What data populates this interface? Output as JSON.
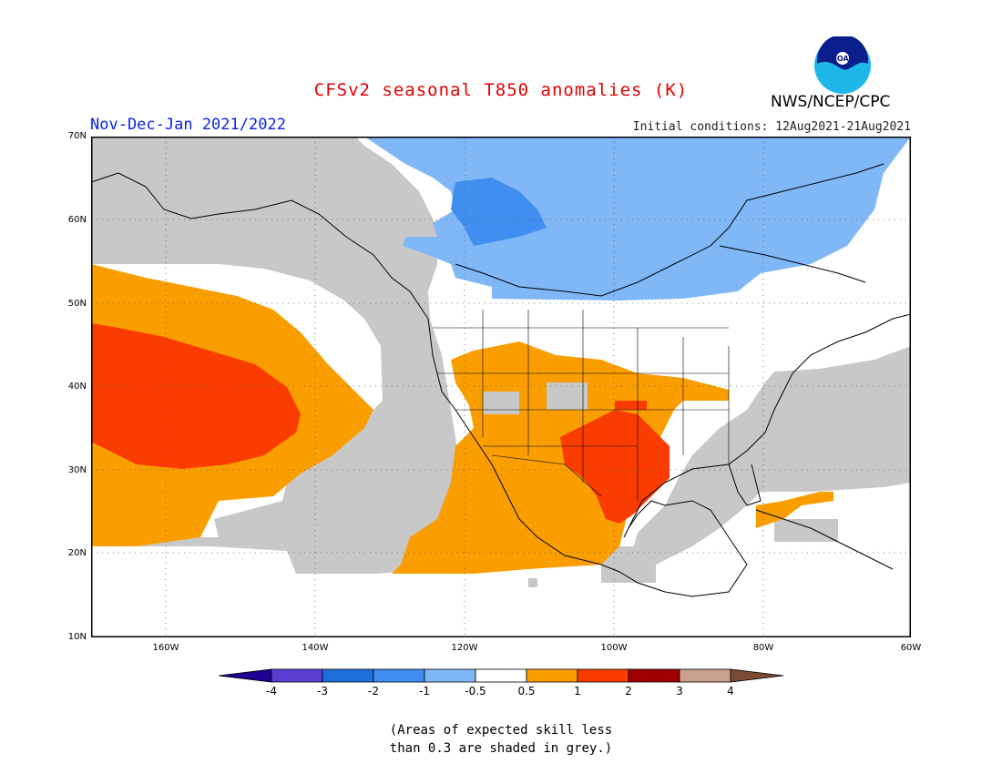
{
  "header": {
    "title": "CFSv2 seasonal T850 anomalies (K)",
    "period": "Nov-Dec-Jan 2021/2022",
    "initial_conditions": "Initial conditions: 12Aug2021-21Aug2021",
    "agency": "NWS/NCEP/CPC",
    "logo_text": "NOAA"
  },
  "map": {
    "lat_labels": [
      "70N",
      "60N",
      "50N",
      "40N",
      "30N",
      "20N",
      "10N"
    ],
    "lon_labels": [
      "160W",
      "140W",
      "120W",
      "100W",
      "80W",
      "60W"
    ],
    "colors": {
      "neg_0_5_to_1": "#7fb7f7",
      "neg_1_to_2": "#3f8ef0",
      "pos_0_5_to_1": "#fa9e00",
      "pos_1_to_2": "#fa3c00",
      "low_skill_grey": "#c8c8c8",
      "near_normal": "#ffffff"
    }
  },
  "colorbar": {
    "labels": [
      "-4",
      "-3",
      "-2",
      "-1",
      "-0.5",
      "0.5",
      "1",
      "2",
      "3",
      "4"
    ],
    "colors": [
      "#1e0094",
      "#5a3ed2",
      "#1e6edc",
      "#3f8ef0",
      "#7fb7f7",
      "#ffffff",
      "#fa9e00",
      "#fa3c00",
      "#a00000",
      "#c8a08c",
      "#7d4a36"
    ]
  },
  "footnote": {
    "line1": "(Areas of expected skill less",
    "line2": "than 0.3 are shaded in grey.)"
  }
}
